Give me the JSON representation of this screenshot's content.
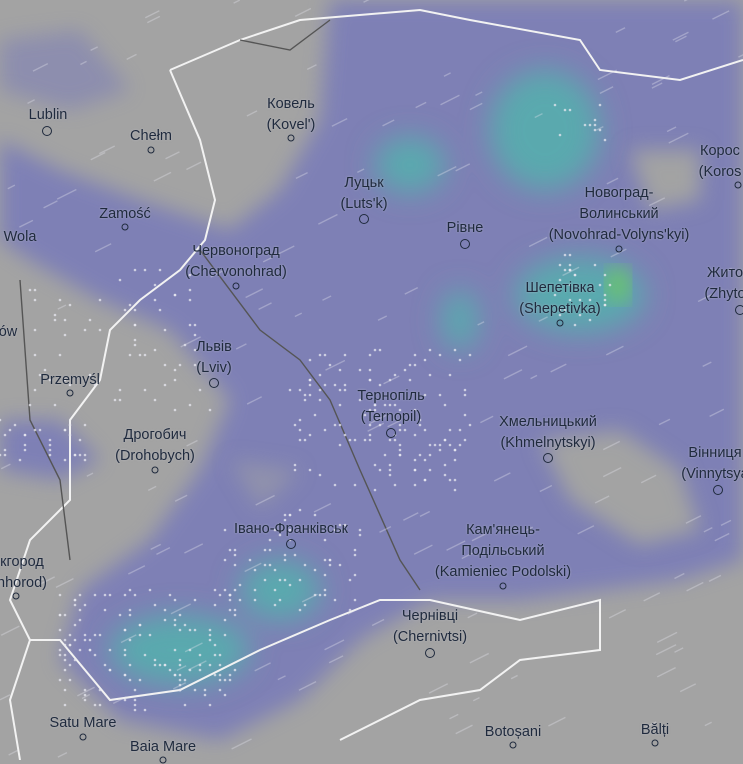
{
  "map": {
    "layer": "precipitation",
    "colors": {
      "land": "#a3a3a3",
      "light_rain": "#7a7db8",
      "moderate_rain": "#5aa9ae",
      "heavy_rain": "#6cc46a",
      "borders": "#f2f2f2"
    },
    "cities": [
      {
        "lines": [
          "Lublin"
        ]
      },
      {
        "lines": [
          "Chełm"
        ]
      },
      {
        "lines": [
          "Ковель",
          "(Kovel')"
        ]
      },
      {
        "lines": [
          "Zamość"
        ]
      },
      {
        "lines": [
          "Wola"
        ]
      },
      {
        "lines": [
          "Луцьк",
          "(Luts'k)"
        ]
      },
      {
        "lines": [
          "Рівне"
        ]
      },
      {
        "lines": [
          "Новоград-",
          "Волинський",
          "(Novohrad-Volyns'kyi)"
        ]
      },
      {
        "lines": [
          "Корос",
          "(Koros"
        ]
      },
      {
        "lines": [
          "Червоноград",
          "(Chervonohrad)"
        ]
      },
      {
        "lines": [
          "Шепетівка",
          "(Shepetivka)"
        ]
      },
      {
        "lines": [
          "Жито",
          "(Zhyto"
        ]
      },
      {
        "lines": [
          "ów"
        ]
      },
      {
        "lines": [
          "Львів",
          "(Lviv)"
        ]
      },
      {
        "lines": [
          "Przemyśl"
        ]
      },
      {
        "lines": [
          "Тернопіль",
          "(Ternopil)"
        ]
      },
      {
        "lines": [
          "Хмельницький",
          "(Khmelnytskyi)"
        ]
      },
      {
        "lines": [
          "Дрогобич",
          "(Drohobych)"
        ]
      },
      {
        "lines": [
          "Вінниця",
          "(Vinnytsya"
        ]
      },
      {
        "lines": [
          "Івано-Франківськ"
        ]
      },
      {
        "lines": [
          "Кам'янець-",
          "Подільський",
          "(Kamieniec Podolski)"
        ]
      },
      {
        "lines": [
          "кгород",
          "hhorod)"
        ]
      },
      {
        "lines": [
          "Чернівці",
          "(Chernivtsi)"
        ]
      },
      {
        "lines": [
          "Satu Mare"
        ]
      },
      {
        "lines": [
          "Baia Mare"
        ]
      },
      {
        "lines": [
          "Botoșani"
        ]
      },
      {
        "lines": [
          "Bălți"
        ]
      }
    ]
  }
}
